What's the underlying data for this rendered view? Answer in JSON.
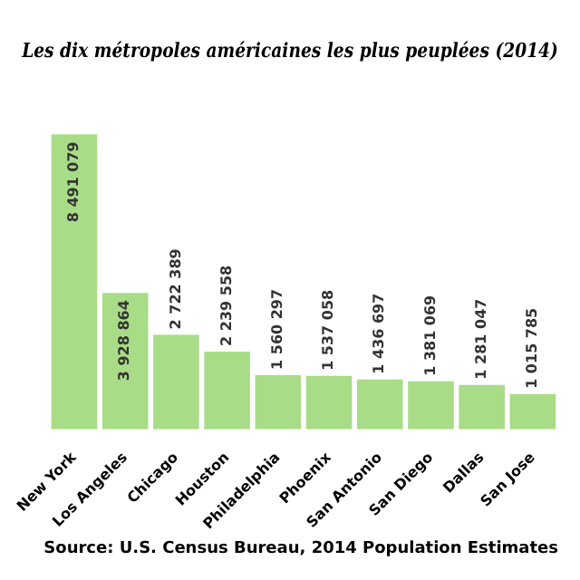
{
  "chart_data": {
    "type": "bar",
    "title": "Les dix métropoles américaines les plus peuplées (2014)",
    "categories": [
      "New York",
      "Los Angeles",
      "Chicago",
      "Houston",
      "Philadelphia",
      "Phoenix",
      "San Antonio",
      "San Diego",
      "Dallas",
      "San Jose"
    ],
    "values": [
      8491079,
      3928864,
      2722389,
      2239558,
      1560297,
      1537058,
      1436697,
      1381069,
      1281047,
      1015785
    ],
    "color": "#a9dc87",
    "data_labels": true,
    "value_labels": [
      "8 491 079",
      "3 928 864",
      "2 722 389",
      "2 239 558",
      "1 560 297",
      "1 537 058",
      "1 436 697",
      "1 381 069",
      "1 281 047",
      "1 015 785"
    ],
    "grid": false,
    "legend": false,
    "annotations": [
      "Source: U.S. Census Bureau, 2014 Population Estimates"
    ]
  }
}
